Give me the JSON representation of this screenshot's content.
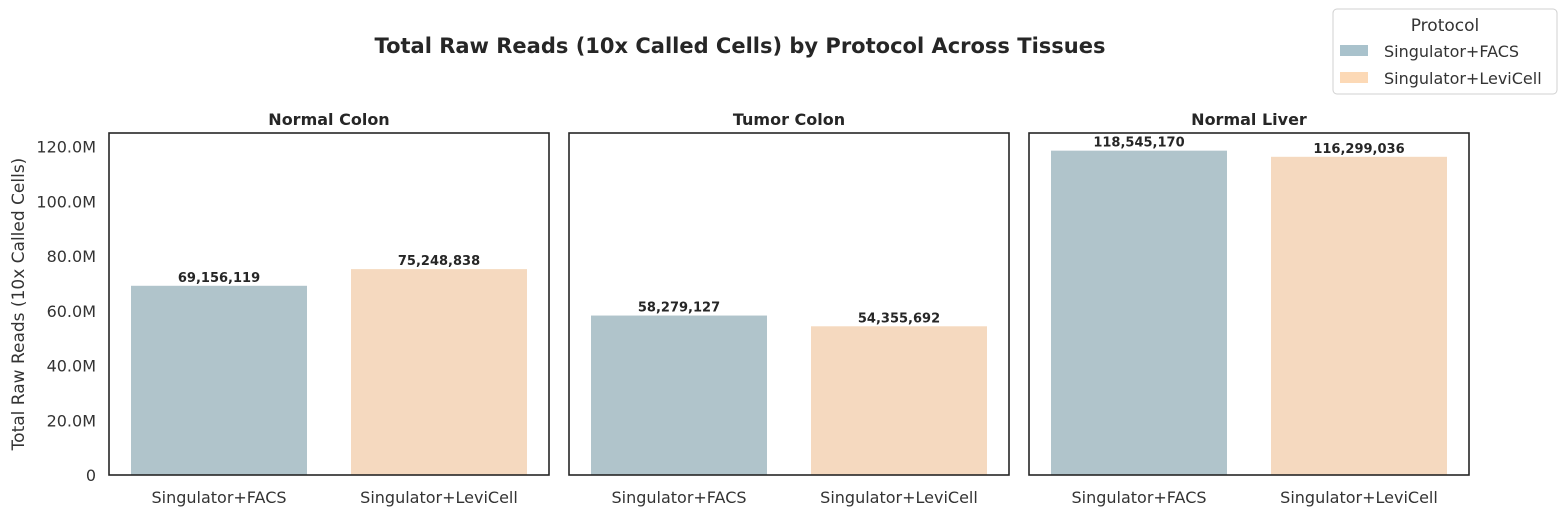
{
  "chart_data": {
    "type": "bar",
    "title": "Total Raw Reads (10x Called Cells) by Protocol Across Tissues",
    "ylabel": "Total Raw Reads (10x Called Cells)",
    "xlabel": "",
    "ylim": [
      0,
      125000000
    ],
    "yticks": [
      0,
      20000000,
      40000000,
      60000000,
      80000000,
      100000000,
      120000000
    ],
    "ytick_labels": [
      "0",
      "20.0M",
      "40.0M",
      "60.0M",
      "80.0M",
      "100.0M",
      "120.0M"
    ],
    "shared_y": true,
    "grid": false,
    "legend": {
      "title": "Protocol",
      "placement": "top-right",
      "entries": [
        "Singulator+FACS",
        "Singulator+LeviCell"
      ]
    },
    "categories": [
      "Singulator+FACS",
      "Singulator+LeviCell"
    ],
    "colors": {
      "Singulator+FACS": "#b0c4cb",
      "Singulator+LeviCell": "#f5d9bf",
      "Singulator+FACS_legend": "#a9c2cc",
      "Singulator+LeviCell_legend": "#fcd9b6"
    },
    "panels": [
      {
        "title": "Normal Colon",
        "values": [
          69156119,
          75248838
        ],
        "labels": [
          "69,156,119",
          "75,248,838"
        ]
      },
      {
        "title": "Tumor Colon",
        "values": [
          58279127,
          54355692
        ],
        "labels": [
          "58,279,127",
          "54,355,692"
        ]
      },
      {
        "title": "Normal Liver",
        "values": [
          118545170,
          116299036
        ],
        "labels": [
          "118,545,170",
          "116,299,036"
        ]
      }
    ]
  }
}
